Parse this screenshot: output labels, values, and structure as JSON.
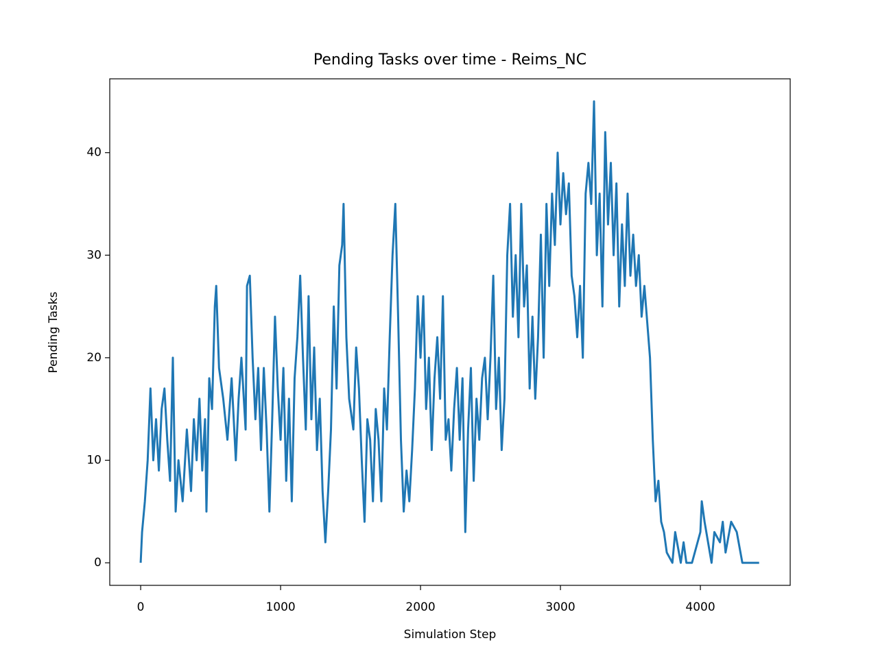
{
  "chart_data": {
    "type": "line",
    "title": "Pending Tasks over time - Reims_NC",
    "xlabel": "Simulation Step",
    "ylabel": "Pending Tasks",
    "xlim": [
      -221,
      4642
    ],
    "ylim": [
      -2.2,
      47.2
    ],
    "xticks": [
      0,
      1000,
      2000,
      3000,
      4000
    ],
    "yticks": [
      0,
      10,
      20,
      30,
      40
    ],
    "grid": false,
    "series": [
      {
        "name": "Pending Tasks",
        "color": "#1f77b4",
        "x": [
          0,
          10,
          30,
          50,
          70,
          90,
          110,
          130,
          150,
          170,
          190,
          210,
          230,
          250,
          270,
          300,
          330,
          360,
          380,
          400,
          420,
          440,
          460,
          470,
          490,
          510,
          530,
          540,
          560,
          590,
          620,
          650,
          680,
          700,
          720,
          750,
          760,
          780,
          800,
          820,
          840,
          860,
          880,
          900,
          920,
          940,
          960,
          980,
          1000,
          1020,
          1040,
          1060,
          1080,
          1100,
          1120,
          1140,
          1160,
          1180,
          1200,
          1220,
          1240,
          1260,
          1280,
          1300,
          1320,
          1340,
          1360,
          1380,
          1400,
          1420,
          1440,
          1450,
          1470,
          1490,
          1520,
          1540,
          1560,
          1580,
          1600,
          1620,
          1640,
          1660,
          1680,
          1700,
          1720,
          1740,
          1760,
          1780,
          1800,
          1820,
          1840,
          1860,
          1880,
          1900,
          1920,
          1940,
          1960,
          1980,
          2000,
          2020,
          2040,
          2060,
          2080,
          2100,
          2120,
          2140,
          2160,
          2180,
          2200,
          2220,
          2240,
          2260,
          2280,
          2300,
          2320,
          2340,
          2360,
          2380,
          2400,
          2420,
          2440,
          2460,
          2480,
          2500,
          2520,
          2540,
          2560,
          2580,
          2600,
          2620,
          2640,
          2660,
          2680,
          2700,
          2720,
          2740,
          2760,
          2780,
          2800,
          2820,
          2840,
          2860,
          2880,
          2900,
          2920,
          2940,
          2960,
          2980,
          3000,
          3020,
          3040,
          3060,
          3080,
          3100,
          3120,
          3140,
          3160,
          3180,
          3200,
          3220,
          3240,
          3260,
          3280,
          3300,
          3320,
          3340,
          3360,
          3380,
          3400,
          3420,
          3440,
          3460,
          3480,
          3500,
          3520,
          3540,
          3560,
          3580,
          3600,
          3640,
          3660,
          3680,
          3700,
          3720,
          3740,
          3760,
          3800,
          3820,
          3860,
          3880,
          3900,
          3940,
          4000,
          4010,
          4030,
          4080,
          4100,
          4140,
          4160,
          4180,
          4220,
          4260,
          4300,
          4420
        ],
        "values": [
          0,
          3,
          6,
          10,
          17,
          10,
          14,
          9,
          15,
          17,
          12,
          8,
          20,
          5,
          10,
          6,
          13,
          7,
          14,
          10,
          16,
          9,
          14,
          5,
          18,
          15,
          25,
          27,
          19,
          16,
          12,
          18,
          10,
          16,
          20,
          13,
          27,
          28,
          20,
          14,
          19,
          11,
          19,
          13,
          5,
          14,
          24,
          17,
          12,
          19,
          8,
          16,
          6,
          18,
          22,
          28,
          20,
          13,
          26,
          14,
          21,
          11,
          16,
          7,
          2,
          7,
          13,
          25,
          17,
          29,
          31,
          35,
          22,
          16,
          13,
          21,
          17,
          10,
          4,
          14,
          12,
          6,
          15,
          12,
          6,
          17,
          13,
          22,
          30,
          35,
          24,
          12,
          5,
          9,
          6,
          11,
          17,
          26,
          20,
          26,
          15,
          20,
          11,
          18,
          22,
          16,
          26,
          12,
          14,
          9,
          15,
          19,
          12,
          18,
          3,
          13,
          19,
          8,
          16,
          12,
          18,
          20,
          14,
          20,
          28,
          15,
          20,
          11,
          16,
          30,
          35,
          24,
          30,
          22,
          35,
          25,
          29,
          17,
          24,
          16,
          22,
          32,
          20,
          35,
          27,
          36,
          31,
          40,
          33,
          38,
          34,
          37,
          28,
          26,
          22,
          27,
          20,
          36,
          39,
          35,
          45,
          30,
          36,
          25,
          42,
          33,
          39,
          30,
          37,
          25,
          33,
          27,
          36,
          28,
          32,
          27,
          30,
          24,
          27,
          20,
          12,
          6,
          8,
          4,
          3,
          1,
          0,
          3,
          0,
          2,
          0,
          0,
          3,
          6,
          4,
          0,
          3,
          2,
          4,
          1,
          4,
          3,
          0,
          0
        ]
      }
    ]
  }
}
